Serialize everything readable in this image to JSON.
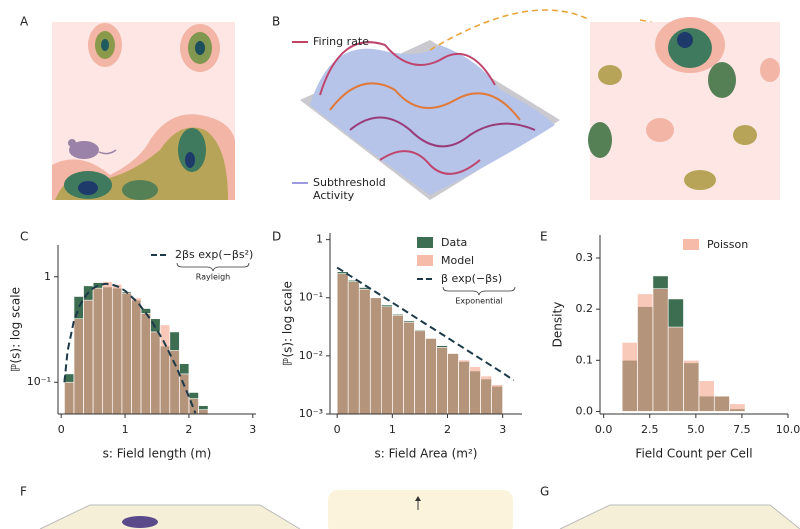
{
  "panel_labels": [
    "A",
    "B",
    "C",
    "D",
    "E",
    "F",
    "G"
  ],
  "panel_b_legend": {
    "firing_rate": "Firing rate",
    "subthreshold": [
      "Subthreshold",
      "Activity"
    ]
  },
  "chart_data": [
    {
      "type": "histogram",
      "legend": "upper right",
      "ylabel": "ℙ(s): log scale",
      "xlabel": "s: Field length (m)",
      "xlim": [
        -0.05,
        3.05
      ],
      "xticks": [
        0,
        1,
        2,
        3
      ],
      "log_y": true,
      "ylim": [
        0.05,
        2.0
      ],
      "yticks": [
        {
          "value": 0.1,
          "label": "10⁻¹"
        },
        1
      ],
      "bins": [
        0.05,
        0.2,
        0.35,
        0.5,
        0.65,
        0.8,
        0.95,
        1.1,
        1.25,
        1.4,
        1.55,
        1.7,
        1.85,
        2.0,
        2.15,
        2.3
      ],
      "series": [
        {
          "color": "#3d6e52",
          "values": [
            0.12,
            0.65,
            0.82,
            0.88,
            0.8,
            0.78,
            0.72,
            0.6,
            0.5,
            0.4,
            0.22,
            0.3,
            0.15,
            0.08,
            0.06
          ]
        },
        {
          "color": "#f4ab93",
          "values": [
            0.1,
            0.4,
            0.6,
            0.78,
            0.9,
            0.85,
            0.7,
            0.63,
            0.45,
            0.3,
            0.35,
            0.2,
            0.12,
            0.07,
            0.055
          ]
        }
      ],
      "curve": {
        "label": "2βs exp(−βs²)",
        "caption": "Rayleigh",
        "color": "#1d3a4a",
        "x": [
          0.05,
          0.1,
          0.2,
          0.3,
          0.4,
          0.5,
          0.6,
          0.7,
          0.8,
          0.9,
          1.0,
          1.2,
          1.4,
          1.6,
          1.8,
          2.0,
          2.1
        ],
        "values": [
          0.0999,
          0.198,
          0.384,
          0.548,
          0.682,
          0.779,
          0.837,
          0.858,
          0.843,
          0.801,
          0.736,
          0.569,
          0.394,
          0.247,
          0.141,
          0.073,
          0.051
        ]
      }
    },
    {
      "type": "histogram",
      "legend": "upper right",
      "ylabel": "ℙ(s): log scale",
      "xlabel": "s: Field Area (m²)",
      "xlim": [
        -0.13,
        3.35
      ],
      "xticks": [
        0,
        1,
        2,
        3
      ],
      "log_y": true,
      "ylim": [
        0.001,
        1.3
      ],
      "yticks": [
        {
          "value": 0.001,
          "label": "10⁻³"
        },
        {
          "value": 0.01,
          "label": "10⁻²"
        },
        {
          "value": 0.1,
          "label": "10⁻¹"
        },
        1
      ],
      "bins": [
        0,
        0.2,
        0.4,
        0.6,
        0.8,
        1.0,
        1.2,
        1.4,
        1.6,
        1.8,
        2.0,
        2.2,
        2.4,
        2.6,
        2.8,
        3.0
      ],
      "series": [
        {
          "name": "Data",
          "color": "#3d6e52",
          "values": [
            0.28,
            0.2,
            0.15,
            0.1,
            0.075,
            0.052,
            0.04,
            0.028,
            0.02,
            0.015,
            0.011,
            0.008,
            0.0055,
            0.004,
            0.003
          ]
        },
        {
          "name": "Model",
          "color": "#f4ab93",
          "values": [
            0.26,
            0.19,
            0.14,
            0.1,
            0.07,
            0.05,
            0.038,
            0.027,
            0.02,
            0.014,
            0.011,
            0.0085,
            0.0065,
            0.0045,
            0.0032
          ]
        }
      ],
      "curve": {
        "label": "β exp(−βs)",
        "caption": "Exponential",
        "color": "#1d3a4a",
        "x": [
          0,
          0.5,
          1,
          1.5,
          2,
          2.5,
          3,
          3.2
        ],
        "values": [
          0.331,
          0.165,
          0.0825,
          0.041,
          0.0205,
          0.0102,
          0.0051,
          0.0038
        ]
      }
    },
    {
      "type": "histogram",
      "legend": "upper right",
      "ylabel": "Density",
      "xlabel": "Field Count per Cell",
      "xlim": [
        -0.2,
        10
      ],
      "xticks": [
        {
          "value": 0,
          "label": "0.0"
        },
        2.5,
        {
          "value": 5,
          "label": "5.0"
        },
        7.5,
        {
          "value": 10,
          "label": "10.0"
        }
      ],
      "log_y": false,
      "ylim": [
        -0.005,
        0.345
      ],
      "yticks": [
        {
          "value": 0,
          "label": "0.0"
        },
        0.1,
        0.2,
        0.3
      ],
      "bins": [
        1,
        1.83,
        2.67,
        3.5,
        4.33,
        5.17,
        6,
        6.83,
        7.67
      ],
      "series": [
        {
          "color": "#3d6e52",
          "values": [
            0.1,
            0.205,
            0.265,
            0.22,
            0.095,
            0.03,
            0.03,
            0.005
          ]
        },
        {
          "name": "Poisson",
          "color": "#f4ab93",
          "values": [
            0.135,
            0.23,
            0.24,
            0.165,
            0.1,
            0.06,
            0.03,
            0.015
          ]
        }
      ]
    }
  ]
}
